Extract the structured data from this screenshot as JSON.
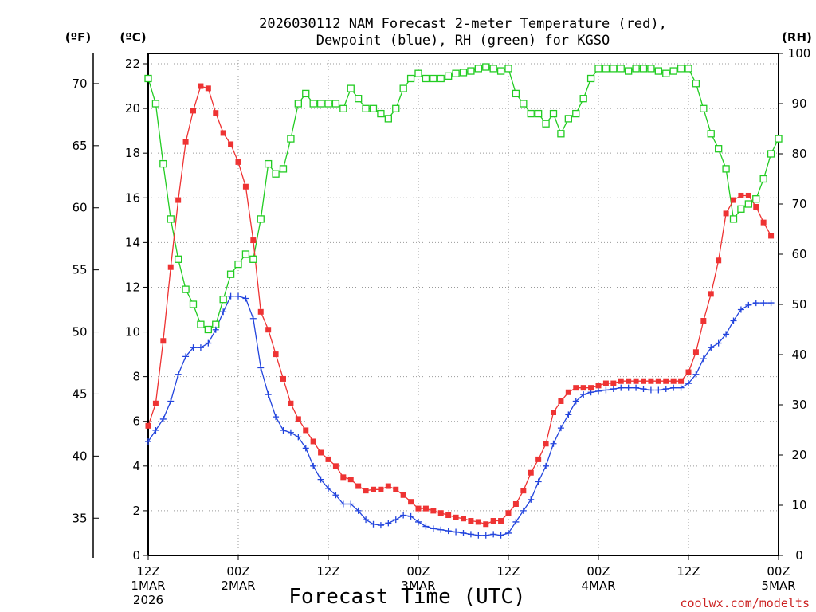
{
  "chart_data": {
    "type": "line",
    "title": "2026030112 NAM Forecast 2-meter Temperature (red),",
    "subtitle": "Dewpoint (blue), RH (green) for KGSO",
    "xlabel": "Forecast Time (UTC)",
    "credit": "coolwx.com/modelts",
    "units": {
      "left_outer": "(ºF)",
      "left_inner": "(ºC)",
      "right": "(RH)"
    },
    "x_hours": [
      0,
      1,
      2,
      3,
      4,
      5,
      6,
      7,
      8,
      9,
      10,
      11,
      12,
      13,
      14,
      15,
      16,
      17,
      18,
      19,
      20,
      21,
      22,
      23,
      24,
      25,
      26,
      27,
      28,
      29,
      30,
      31,
      32,
      33,
      34,
      35,
      36,
      37,
      38,
      39,
      40,
      41,
      42,
      43,
      44,
      45,
      46,
      47,
      48,
      49,
      50,
      51,
      52,
      53,
      54,
      55,
      56,
      57,
      58,
      59,
      60,
      61,
      62,
      63,
      64,
      65,
      66,
      67,
      68,
      69,
      70,
      71,
      72,
      73,
      74,
      75,
      76,
      77,
      78,
      79,
      80,
      81,
      82,
      83,
      84
    ],
    "x_ticks": [
      {
        "hour": 0,
        "lines": [
          "12Z",
          "1MAR",
          "2026"
        ]
      },
      {
        "hour": 12,
        "lines": [
          "00Z",
          "2MAR"
        ]
      },
      {
        "hour": 24,
        "lines": [
          "12Z"
        ]
      },
      {
        "hour": 36,
        "lines": [
          "00Z",
          "3MAR"
        ]
      },
      {
        "hour": 48,
        "lines": [
          "12Z"
        ]
      },
      {
        "hour": 60,
        "lines": [
          "00Z",
          "4MAR"
        ]
      },
      {
        "hour": 72,
        "lines": [
          "12Z"
        ]
      },
      {
        "hour": 84,
        "lines": [
          "00Z",
          "5MAR"
        ]
      }
    ],
    "y_celsius": {
      "min": 0,
      "max": 22,
      "ticks": [
        "0",
        "2",
        "4",
        "6",
        "8",
        "10",
        "12",
        "14",
        "16",
        "18",
        "20",
        "22"
      ]
    },
    "y_fahrenheit": {
      "ticks": [
        "35",
        "40",
        "45",
        "50",
        "55",
        "60",
        "65",
        "70"
      ]
    },
    "y_rh": {
      "min": 0,
      "max": 100,
      "ticks": [
        "0",
        "10",
        "20",
        "30",
        "40",
        "50",
        "60",
        "70",
        "80",
        "90",
        "100"
      ]
    },
    "series": [
      {
        "name": "2-meter Temperature (°C)",
        "color": "#ee3333",
        "marker": "filled-square",
        "values": [
          5.8,
          6.8,
          9.6,
          12.9,
          15.9,
          18.5,
          19.9,
          21.0,
          20.9,
          19.8,
          18.9,
          18.4,
          17.6,
          16.5,
          14.1,
          10.9,
          10.1,
          9.0,
          7.9,
          6.8,
          6.1,
          5.6,
          5.1,
          4.6,
          4.3,
          4.0,
          3.5,
          3.4,
          3.1,
          2.9,
          2.95,
          2.95,
          3.1,
          2.95,
          2.7,
          2.4,
          2.1,
          2.1,
          2.0,
          1.9,
          1.8,
          1.7,
          1.65,
          1.55,
          1.5,
          1.4,
          1.55,
          1.55,
          1.9,
          2.3,
          2.9,
          3.7,
          4.3,
          5.0,
          6.4,
          6.9,
          7.3,
          7.5,
          7.5,
          7.5,
          7.6,
          7.7,
          7.7,
          7.8,
          7.8,
          7.8,
          7.8,
          7.8,
          7.8,
          7.8,
          7.8,
          7.8,
          8.2,
          9.1,
          10.5,
          11.7,
          13.2,
          15.3,
          15.9,
          16.1,
          16.1,
          15.6,
          14.9,
          14.3
        ]
      },
      {
        "name": "Dewpoint (°C)",
        "color": "#2244dd",
        "marker": "plus",
        "values": [
          5.1,
          5.6,
          6.1,
          6.9,
          8.1,
          8.9,
          9.3,
          9.3,
          9.5,
          10.1,
          10.9,
          11.6,
          11.6,
          11.5,
          10.6,
          8.4,
          7.2,
          6.2,
          5.6,
          5.5,
          5.3,
          4.8,
          4.0,
          3.4,
          3.0,
          2.7,
          2.3,
          2.3,
          2.0,
          1.6,
          1.4,
          1.35,
          1.45,
          1.6,
          1.8,
          1.75,
          1.5,
          1.3,
          1.2,
          1.15,
          1.1,
          1.05,
          1.0,
          0.95,
          0.9,
          0.9,
          0.95,
          0.9,
          1.0,
          1.5,
          2.0,
          2.5,
          3.3,
          4.0,
          5.0,
          5.7,
          6.3,
          6.9,
          7.2,
          7.3,
          7.35,
          7.4,
          7.45,
          7.5,
          7.5,
          7.5,
          7.45,
          7.4,
          7.4,
          7.45,
          7.5,
          7.5,
          7.7,
          8.1,
          8.8,
          9.3,
          9.5,
          9.9,
          10.5,
          11.0,
          11.2,
          11.3,
          11.3,
          11.3
        ]
      },
      {
        "name": "RH (%)",
        "color": "#22cc22",
        "marker": "open-square",
        "values": [
          95,
          90,
          78,
          67,
          59,
          53,
          50,
          46,
          45,
          46,
          51,
          56,
          58,
          60,
          59,
          67,
          78,
          76,
          77,
          83,
          90,
          92,
          90,
          90,
          90,
          90,
          89,
          93,
          91,
          89,
          89,
          88,
          87,
          89,
          93,
          95,
          96,
          95,
          95,
          95,
          95.5,
          96,
          96.2,
          96.5,
          97,
          97.3,
          97,
          96.5,
          97,
          92,
          90,
          88,
          88,
          86,
          88,
          84,
          87,
          88,
          91,
          95,
          97,
          97,
          97,
          97,
          96.5,
          97,
          97,
          97,
          96.5,
          96,
          96.5,
          97,
          97,
          94,
          89,
          84,
          81,
          77,
          67,
          69,
          70,
          71,
          75,
          80,
          83
        ]
      }
    ]
  }
}
